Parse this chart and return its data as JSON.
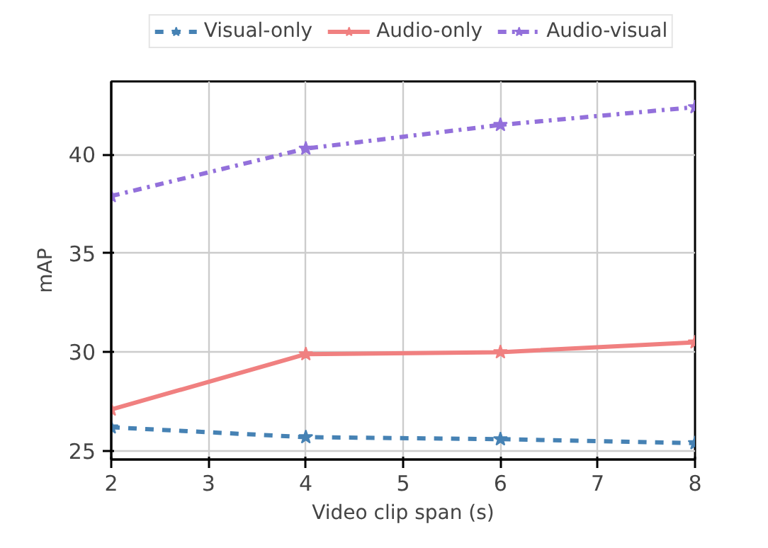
{
  "chart_data": {
    "type": "line",
    "xlabel": "Video clip span (s)",
    "ylabel": "mAP",
    "x": [
      2,
      4,
      6,
      8
    ],
    "series": [
      {
        "name": "Visual-only",
        "color": "#4682b4",
        "line_style": "dashed",
        "values": [
          26.2,
          25.7,
          25.6,
          25.4
        ]
      },
      {
        "name": "Audio-only",
        "color": "#f08080",
        "line_style": "solid",
        "values": [
          27.1,
          29.9,
          30.0,
          30.5
        ]
      },
      {
        "name": "Audio-visual",
        "color": "#9370db",
        "line_style": "dashdot",
        "values": [
          37.9,
          40.3,
          41.5,
          42.4
        ]
      }
    ],
    "xlim": [
      2,
      8
    ],
    "xticks": [
      2,
      3,
      4,
      5,
      6,
      7,
      8
    ],
    "ylim": [
      24.57,
      43.7
    ],
    "yticks": [
      25,
      30,
      35,
      40
    ],
    "grid": true,
    "legend": "top",
    "marker": "star"
  }
}
